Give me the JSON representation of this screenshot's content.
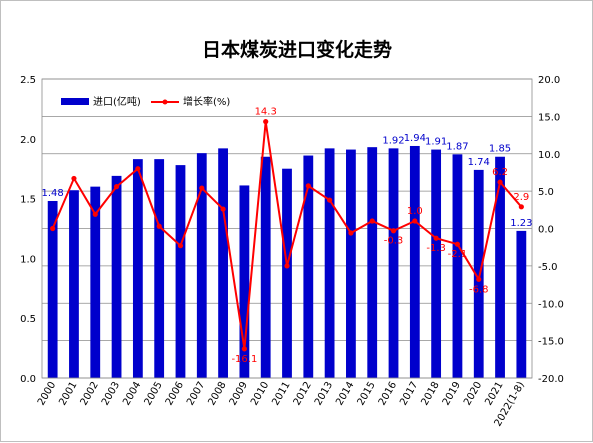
{
  "chart_data": {
    "type": "bar",
    "title": "日本煤炭进口变化走势",
    "categories": [
      "2000",
      "2001",
      "2002",
      "2003",
      "2004",
      "2005",
      "2006",
      "2007",
      "2008",
      "2009",
      "2010",
      "2011",
      "2012",
      "2013",
      "2014",
      "2015",
      "2016",
      "2017",
      "2018",
      "2019",
      "2020",
      "2021",
      "2022(1-8)"
    ],
    "series": [
      {
        "name": "进口(亿吨)",
        "type": "bar",
        "axis": "left",
        "color": "#0000cc",
        "values": [
          1.48,
          1.57,
          1.6,
          1.69,
          1.83,
          1.83,
          1.78,
          1.88,
          1.92,
          1.61,
          1.85,
          1.75,
          1.86,
          1.92,
          1.91,
          1.93,
          1.92,
          1.94,
          1.91,
          1.87,
          1.74,
          1.85,
          1.23
        ],
        "labels": [
          "1.48",
          "",
          "",
          "",
          "",
          "",
          "",
          "",
          "",
          "",
          "",
          "",
          "",
          "",
          "",
          "",
          "1.92",
          "1.94",
          "1.91",
          "1.87",
          "1.74",
          "1.85",
          "1.23"
        ]
      },
      {
        "name": "增长率(%)",
        "type": "line",
        "axis": "right",
        "color": "#ff0000",
        "values": [
          0.0,
          6.7,
          1.9,
          5.6,
          8.0,
          0.3,
          -2.3,
          5.4,
          2.6,
          -16.1,
          14.3,
          -5.0,
          5.7,
          3.8,
          -0.6,
          1.0,
          -0.3,
          1.0,
          -1.3,
          -2.1,
          -6.8,
          6.2,
          2.9
        ],
        "labels": [
          "",
          "",
          "",
          "",
          "",
          "",
          "",
          "",
          "",
          "-16.1",
          "14.3",
          "",
          "",
          "",
          "",
          "",
          "-0.3",
          "1.0",
          "-1.3",
          "-2.1",
          "-6.8",
          "6.2",
          "2.9"
        ]
      }
    ],
    "y_left": {
      "min": 0.0,
      "max": 2.5,
      "ticks": [
        "0.0",
        "0.5",
        "1.0",
        "1.5",
        "2.0",
        "2.5"
      ]
    },
    "y_right": {
      "min": -20.0,
      "max": 20.0,
      "ticks": [
        "-20.0",
        "-15.0",
        "-10.0",
        "-5.0",
        "0.0",
        "5.0",
        "10.0",
        "15.0",
        "20.0"
      ]
    },
    "grid": true,
    "legend": "top-left"
  }
}
